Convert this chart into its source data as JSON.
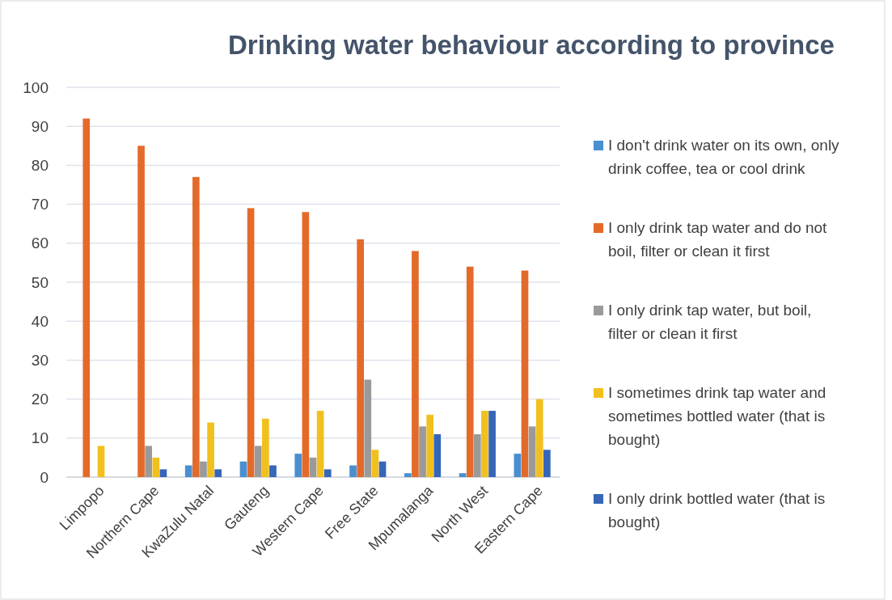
{
  "chart_data": {
    "type": "bar",
    "title": "Drinking water behaviour according to province",
    "categories": [
      "Limpopo",
      "Northern Cape",
      "KwaZulu Natal",
      "Gauteng",
      "Western Cape",
      "Free State",
      "Mpumalanga",
      "North West",
      "Eastern Cape"
    ],
    "series": [
      {
        "name": "I don't drink water on its own, only drink coffee, tea or cool drink",
        "color": "#4a8fd0",
        "values": [
          0,
          0,
          3,
          4,
          6,
          3,
          1,
          1,
          6
        ]
      },
      {
        "name": "I only drink tap water and do not boil, filter or clean it first",
        "color": "#e46a2a",
        "values": [
          92,
          85,
          77,
          69,
          68,
          61,
          58,
          54,
          53
        ]
      },
      {
        "name": "I only drink tap water, but boil, filter or clean it first",
        "color": "#9a9a9a",
        "values": [
          0,
          8,
          4,
          8,
          5,
          25,
          13,
          11,
          13
        ]
      },
      {
        "name": "I sometimes drink tap water and sometimes bottled water (that is bought)",
        "color": "#f2c01e",
        "values": [
          8,
          5,
          14,
          15,
          17,
          7,
          16,
          17,
          20
        ]
      },
      {
        "name": "I only drink bottled water (that is bought)",
        "color": "#3566b8",
        "values": [
          0,
          2,
          2,
          3,
          2,
          4,
          11,
          17,
          7
        ]
      }
    ],
    "ylim": [
      0,
      100
    ],
    "yticks": [
      0,
      10,
      20,
      30,
      40,
      50,
      60,
      70,
      80,
      90,
      100
    ],
    "grid": "y",
    "legend": "right"
  }
}
